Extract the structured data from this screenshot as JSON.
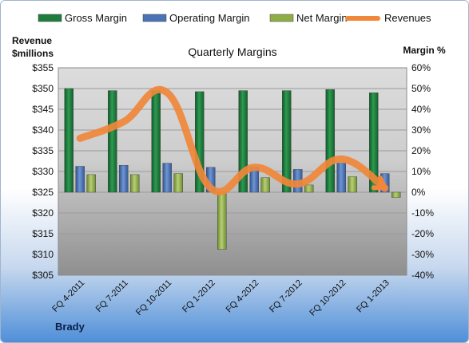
{
  "chart_data": {
    "type": "bar",
    "title": "Quarterly Margins",
    "left_axis_title": [
      "Revenue",
      "$millions"
    ],
    "right_axis_title": "Margin %",
    "footer": "Brady",
    "categories": [
      "FQ 4-2011",
      "FQ 7-2011",
      "FQ 10-2011",
      "FQ 1-2012",
      "FQ 4-2012",
      "FQ 7-2012",
      "FQ 10-2012",
      "FQ 1-2013"
    ],
    "left_axis": {
      "min": 305,
      "max": 355,
      "step": 5,
      "prefix": "$"
    },
    "right_axis": {
      "min": -40,
      "max": 60,
      "step": 10,
      "suffix": "%"
    },
    "series": [
      {
        "name": "Gross Margin",
        "type": "bar",
        "axis": "right",
        "color": "#1e7d3c",
        "values": [
          50,
          49,
          49,
          48.5,
          49,
          49,
          49.5,
          48
        ]
      },
      {
        "name": "Operating Margin",
        "type": "bar",
        "axis": "right",
        "color": "#4a72b4",
        "values": [
          12.5,
          13,
          14,
          12,
          12,
          11,
          14,
          9
        ]
      },
      {
        "name": "Net Margin",
        "type": "bar",
        "axis": "right",
        "color": "#8fad46",
        "values": [
          8.5,
          8.5,
          9,
          -27.5,
          7,
          3.5,
          7.5,
          -2.5
        ]
      },
      {
        "name": "Revenues",
        "type": "line",
        "axis": "left",
        "color": "#f0873a",
        "values": [
          338,
          342,
          349,
          326,
          331,
          327,
          333,
          326
        ]
      }
    ]
  }
}
